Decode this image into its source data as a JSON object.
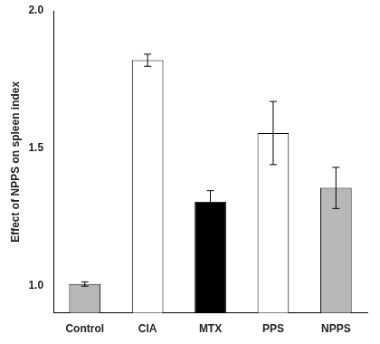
{
  "chart_data": {
    "type": "bar",
    "categories": [
      "Control",
      "CIA",
      "MTX",
      "PPS",
      "NPPS"
    ],
    "values": [
      1.005,
      1.82,
      1.305,
      1.555,
      1.355
    ],
    "errors": [
      0.008,
      0.022,
      0.04,
      0.115,
      0.075
    ],
    "colors": [
      "#b8b8b8",
      "white",
      "black",
      "white",
      "#b8b8b8"
    ],
    "ylabel": "Effect of NPPS on spleen index",
    "ylim": [
      0.9,
      2.0
    ],
    "yticks": [
      {
        "value": 1.0,
        "label": "1.0"
      },
      {
        "value": 1.5,
        "label": "1.5"
      },
      {
        "value": 2.0,
        "label": "2.0"
      }
    ],
    "grid": false
  }
}
